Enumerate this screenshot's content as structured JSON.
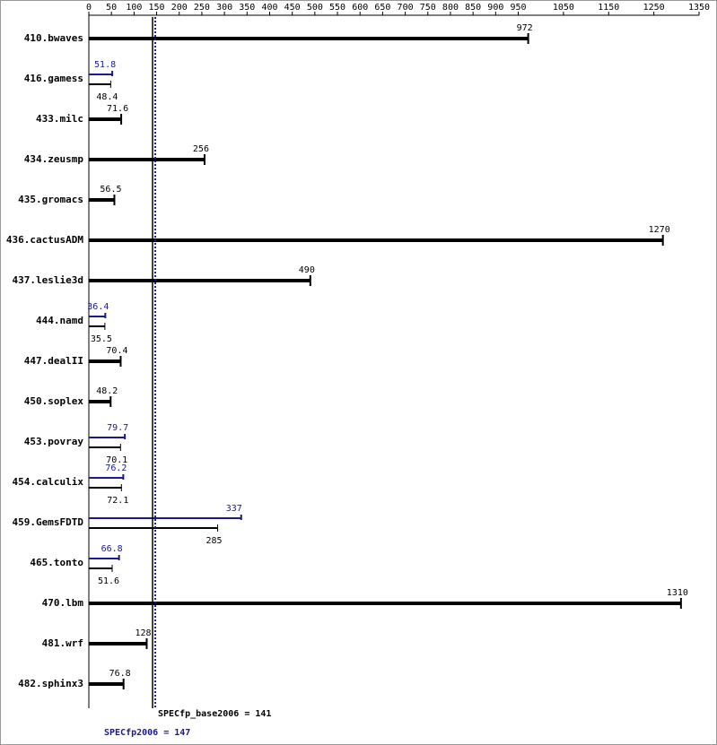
{
  "chart_data": {
    "type": "bar",
    "categories": [
      "410.bwaves",
      "416.gamess",
      "433.milc",
      "434.zeusmp",
      "435.gromacs",
      "436.cactusADM",
      "437.leslie3d",
      "444.namd",
      "447.dealII",
      "450.soplex",
      "453.povray",
      "454.calculix",
      "459.GemsFDTD",
      "465.tonto",
      "470.lbm",
      "481.wrf",
      "482.sphinx3"
    ],
    "series": [
      {
        "name": "SPECfp_base2006",
        "color": "#000000",
        "values": [
          972,
          48.4,
          71.6,
          256,
          56.5,
          1270,
          490,
          35.5,
          70.4,
          48.2,
          70.1,
          72.1,
          285,
          51.6,
          1310,
          128,
          76.8
        ]
      },
      {
        "name": "SPECfp2006",
        "color": "#191990",
        "values": [
          null,
          51.8,
          null,
          null,
          null,
          null,
          null,
          36.4,
          null,
          null,
          79.7,
          76.2,
          337,
          66.8,
          null,
          null,
          null
        ]
      }
    ],
    "reference_lines": [
      {
        "label": "SPECfp_base2006 = 141",
        "value": 141,
        "color": "#000000",
        "dashed": false
      },
      {
        "label": "SPECfp2006 = 147",
        "value": 147,
        "color": "#191990",
        "dashed": true
      }
    ],
    "xlim": [
      0,
      1350
    ],
    "xticks": [
      0,
      50,
      100,
      150,
      200,
      250,
      300,
      350,
      400,
      450,
      500,
      550,
      600,
      650,
      700,
      750,
      800,
      850,
      900,
      950,
      1050,
      1150,
      1250,
      1350
    ]
  }
}
